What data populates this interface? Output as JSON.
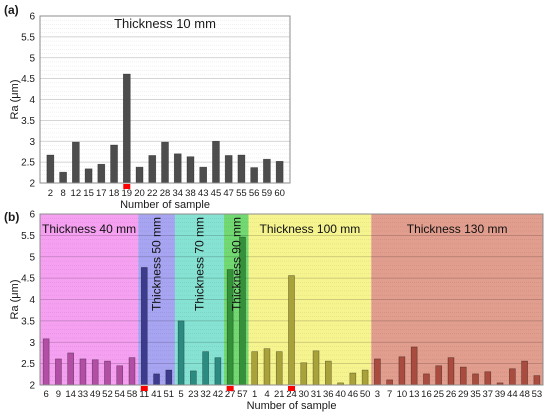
{
  "chart_data": [
    {
      "panel_label": "(a)",
      "type": "bar",
      "title": "Thickness 10 mm",
      "xlabel": "Number of sample",
      "ylabel": "Ra (μm)",
      "ylim": [
        2,
        6
      ],
      "yticks": [
        "2",
        "2.5",
        "3",
        "3.5",
        "4",
        "4.5",
        "5",
        "5.5",
        "6"
      ],
      "grid": true,
      "bar_color": "#4d4d4d",
      "marker_color": "#ff0000",
      "marked_samples": [
        19
      ],
      "categories": [
        "2",
        "8",
        "12",
        "15",
        "17",
        "18",
        "19",
        "20",
        "22",
        "28",
        "34",
        "38",
        "43",
        "45",
        "47",
        "55",
        "56",
        "59",
        "60"
      ],
      "values": [
        2.67,
        2.26,
        2.98,
        2.34,
        2.45,
        2.91,
        4.61,
        2.38,
        2.66,
        2.98,
        2.7,
        2.63,
        2.38,
        3.0,
        2.66,
        2.67,
        2.37,
        2.57,
        2.52
      ]
    },
    {
      "panel_label": "(b)",
      "type": "bar",
      "xlabel": "Number of sample",
      "ylabel": "Ra (μm)",
      "ylim": [
        2,
        6
      ],
      "yticks": [
        "2",
        "2.5",
        "3",
        "3.5",
        "4",
        "4.5",
        "5",
        "5.5",
        "6"
      ],
      "grid": true,
      "marker_color": "#ff0000",
      "marked_samples": [
        11,
        27,
        24
      ],
      "groups": [
        {
          "name": "Thickness 40 mm",
          "band_color": "#f6a0f2",
          "bar_color": "#b24fa5",
          "categories": [
            "6",
            "9",
            "14",
            "33",
            "49",
            "52",
            "54",
            "58"
          ],
          "values": [
            3.08,
            2.61,
            2.75,
            2.61,
            2.59,
            2.56,
            2.45,
            2.64
          ]
        },
        {
          "name": "Thickness 50 mm",
          "band_color": "#a7a4f2",
          "bar_color": "#3c3b8e",
          "categories": [
            "11",
            "41",
            "51"
          ],
          "values": [
            4.75,
            2.26,
            2.35
          ]
        },
        {
          "name": "Thickness 70 mm",
          "band_color": "#86e2d3",
          "bar_color": "#2c8b80",
          "categories": [
            "5",
            "23",
            "32",
            "42"
          ],
          "values": [
            3.5,
            2.33,
            2.78,
            2.64
          ]
        },
        {
          "name": "Thickness 90 mm",
          "band_color": "#72d972",
          "bar_color": "#34913a",
          "categories": [
            "27",
            "57"
          ],
          "values": [
            4.7,
            5.46
          ]
        },
        {
          "name": "Thickness 100 mm",
          "band_color": "#f6f48f",
          "bar_color": "#a9a23b",
          "categories": [
            "1",
            "4",
            "21",
            "24",
            "30",
            "31",
            "36",
            "40",
            "46",
            "50"
          ],
          "values": [
            2.78,
            2.85,
            2.78,
            4.56,
            2.52,
            2.8,
            2.56,
            2.05,
            2.28,
            2.35
          ]
        },
        {
          "name": "Thickness 130 mm",
          "band_color": "#e19d8d",
          "bar_color": "#a94b3e",
          "categories": [
            "3",
            "7",
            "10",
            "13",
            "16",
            "25",
            "26",
            "29",
            "35",
            "37",
            "39",
            "44",
            "48",
            "53"
          ],
          "values": [
            2.61,
            2.12,
            2.66,
            2.89,
            2.26,
            2.45,
            2.64,
            2.42,
            2.26,
            2.31,
            2.05,
            2.38,
            2.56,
            2.22
          ]
        }
      ]
    }
  ]
}
